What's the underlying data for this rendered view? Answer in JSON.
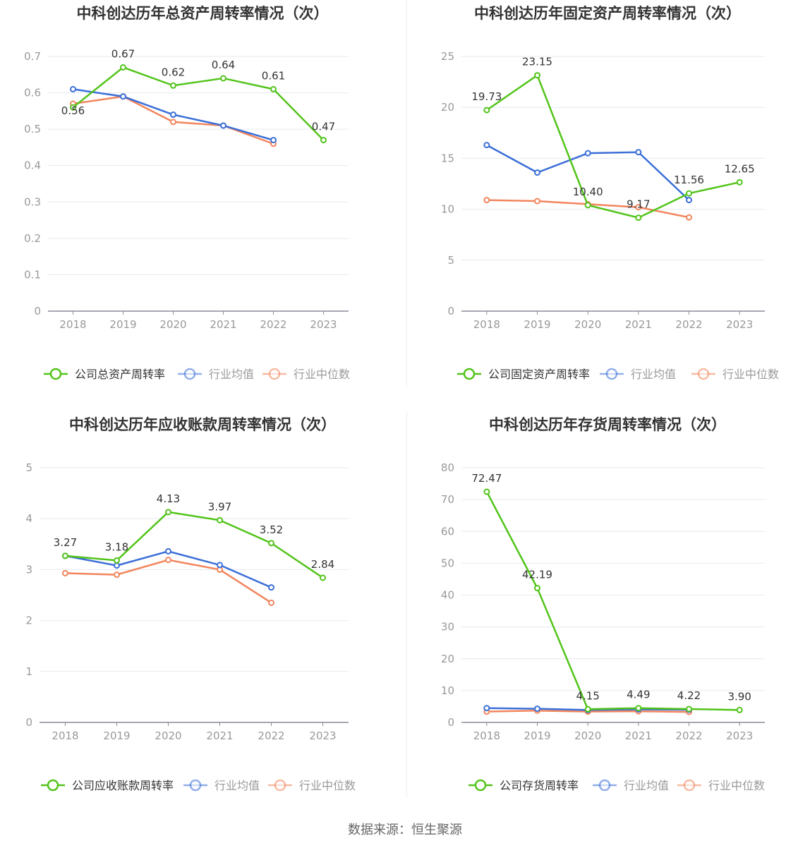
{
  "footer": {
    "source": "数据来源：恒生聚源"
  },
  "colors": {
    "company": "#52c41a",
    "avg": "#3b6fd8",
    "median": "#f2855d",
    "grid": "#e6e9f0",
    "axis": "#999999"
  },
  "chart_data": [
    {
      "type": "line",
      "title": "中科创达历年总资产周转率情况（次）",
      "categories": [
        "2018",
        "2019",
        "2020",
        "2021",
        "2022",
        "2023"
      ],
      "ylim": [
        0,
        0.7
      ],
      "yticks": [
        "0",
        "0.1",
        "0.2",
        "0.3",
        "0.4",
        "0.5",
        "0.6",
        "0.7"
      ],
      "series": [
        {
          "name": "公司总资产周转率",
          "key": "company",
          "values": [
            0.56,
            0.67,
            0.62,
            0.64,
            0.61,
            0.47
          ],
          "labels": [
            "0.56",
            "0.67",
            "0.62",
            "0.64",
            "0.61",
            "0.47"
          ]
        },
        {
          "name": "行业均值",
          "key": "avg",
          "values": [
            0.61,
            0.59,
            0.54,
            0.51,
            0.47,
            null
          ]
        },
        {
          "name": "行业中位数",
          "key": "median",
          "values": [
            0.57,
            0.59,
            0.52,
            0.51,
            0.46,
            null
          ]
        }
      ]
    },
    {
      "type": "line",
      "title": "中科创达历年固定资产周转率情况（次）",
      "categories": [
        "2018",
        "2019",
        "2020",
        "2021",
        "2022",
        "2023"
      ],
      "ylim": [
        0,
        25
      ],
      "yticks": [
        "0",
        "5",
        "10",
        "15",
        "20",
        "25"
      ],
      "series": [
        {
          "name": "公司固定资产周转率",
          "key": "company",
          "values": [
            19.73,
            23.15,
            10.4,
            9.17,
            11.56,
            12.65
          ],
          "labels": [
            "19.73",
            "23.15",
            "10.40",
            "9.17",
            "11.56",
            "12.65"
          ]
        },
        {
          "name": "行业均值",
          "key": "avg",
          "values": [
            16.3,
            13.6,
            15.5,
            15.6,
            10.9,
            null
          ]
        },
        {
          "name": "行业中位数",
          "key": "median",
          "values": [
            10.9,
            10.8,
            10.5,
            10.2,
            9.2,
            null
          ]
        }
      ]
    },
    {
      "type": "line",
      "title": "中科创达历年应收账款周转率情况（次）",
      "categories": [
        "2018",
        "2019",
        "2020",
        "2021",
        "2022",
        "2023"
      ],
      "ylim": [
        0,
        5
      ],
      "yticks": [
        "0",
        "1",
        "2",
        "3",
        "4",
        "5"
      ],
      "series": [
        {
          "name": "公司应收账款周转率",
          "key": "company",
          "values": [
            3.27,
            3.18,
            4.13,
            3.97,
            3.52,
            2.84
          ],
          "labels": [
            "3.27",
            "3.18",
            "4.13",
            "3.97",
            "3.52",
            "2.84"
          ]
        },
        {
          "name": "行业均值",
          "key": "avg",
          "values": [
            3.27,
            3.08,
            3.36,
            3.09,
            2.65,
            null
          ]
        },
        {
          "name": "行业中位数",
          "key": "median",
          "values": [
            2.93,
            2.9,
            3.19,
            3.0,
            2.35,
            null
          ]
        }
      ]
    },
    {
      "type": "line",
      "title": "中科创达历年存货周转率情况（次）",
      "categories": [
        "2018",
        "2019",
        "2020",
        "2021",
        "2022",
        "2023"
      ],
      "ylim": [
        0,
        80
      ],
      "yticks": [
        "0",
        "10",
        "20",
        "30",
        "40",
        "50",
        "60",
        "70",
        "80"
      ],
      "series": [
        {
          "name": "公司存货周转率",
          "key": "company",
          "values": [
            72.47,
            42.19,
            4.15,
            4.49,
            4.22,
            3.9
          ],
          "labels": [
            "72.47",
            "42.19",
            "4.15",
            "4.49",
            "4.22",
            "3.90"
          ]
        },
        {
          "name": "行业均值",
          "key": "avg",
          "values": [
            4.5,
            4.3,
            3.9,
            4.1,
            4.0,
            null
          ]
        },
        {
          "name": "行业中位数",
          "key": "median",
          "values": [
            3.4,
            3.7,
            3.4,
            3.5,
            3.3,
            null
          ]
        }
      ]
    }
  ]
}
